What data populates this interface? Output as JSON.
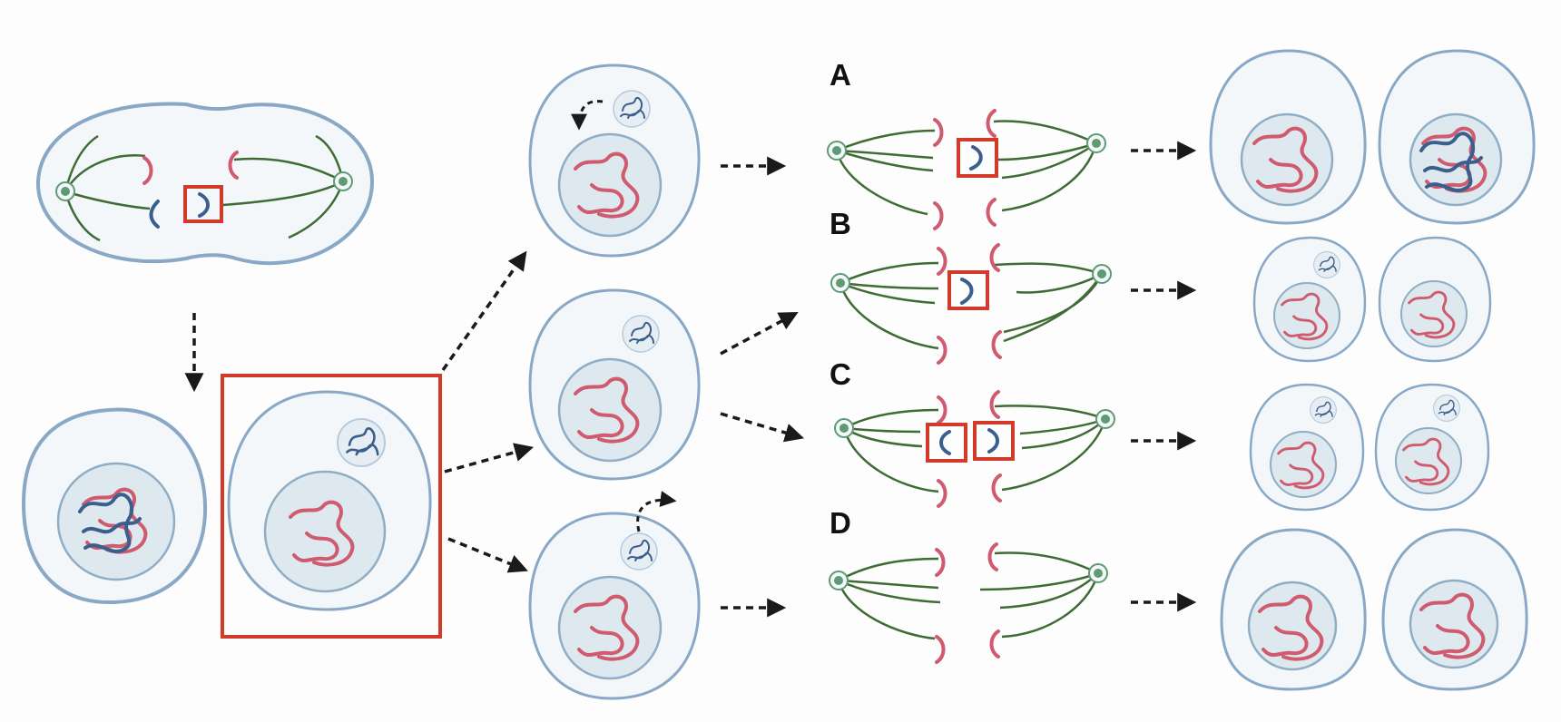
{
  "panels": {
    "a": "A",
    "b": "B",
    "c": "C",
    "d": "D"
  },
  "colors": {
    "membrane": "#88a8c6",
    "cytoplasm": "#f3f7fa",
    "nucleus_fill": "#dde8ef",
    "nucleus_edge": "#8fadc4",
    "micronucleus_fill": "#e6eef3",
    "chromosome_red": "#d05a6e",
    "chromosome_blue": "#3a5f8c",
    "spindle_green": "#3f6b35",
    "centrosome": "#5e9a73",
    "highlight_red": "#d23a2a",
    "arrow": "#1a1a1a"
  }
}
